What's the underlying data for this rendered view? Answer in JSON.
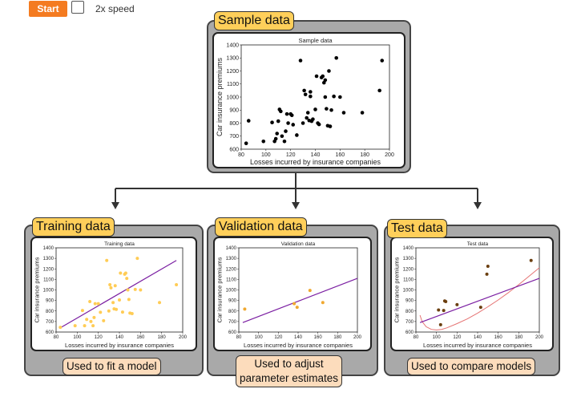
{
  "controls": {
    "start_label": "Start",
    "speed_label": "2x speed",
    "speed_checked": false,
    "accent_color": "#f47b20"
  },
  "panels": {
    "sample": {
      "label": "Sample data"
    },
    "training": {
      "label": "Training data",
      "note": "Used to fit a model"
    },
    "validation": {
      "label": "Validation data",
      "note_line1": "Used to adjust",
      "note_line2": "parameter estimates"
    },
    "test": {
      "label": "Test data",
      "note": "Used to compare models"
    }
  },
  "colors": {
    "panel_bg": "#a9a9a9",
    "tag_bg": "#ffcf5a",
    "note_bg": "#fcdcbc",
    "sample_point": "#000000",
    "train_point": "#ffcc55",
    "valid_point": "#f0a830",
    "test_point": "#6b3f10",
    "fit_line": "#7b1fa2",
    "curve": "#e57373"
  },
  "chart_data": [
    {
      "type": "scatter",
      "title": "Sample data",
      "xlabel": "Losses incurred by insurance companies",
      "ylabel": "Car insurance premiums",
      "xlim": [
        80,
        200
      ],
      "ylim": [
        600,
        1400
      ],
      "xticks": [
        80,
        100,
        120,
        140,
        160,
        180,
        200
      ],
      "yticks": [
        600,
        700,
        800,
        900,
        1000,
        1100,
        1200,
        1300,
        1400
      ],
      "grid": false,
      "points": [
        [
          84,
          645
        ],
        [
          86,
          818
        ],
        [
          98,
          660
        ],
        [
          105,
          805
        ],
        [
          107,
          660
        ],
        [
          108,
          680
        ],
        [
          109,
          720
        ],
        [
          110,
          815
        ],
        [
          111,
          905
        ],
        [
          112,
          890
        ],
        [
          113,
          700
        ],
        [
          115,
          660
        ],
        [
          116,
          738
        ],
        [
          117,
          870
        ],
        [
          118,
          800
        ],
        [
          120,
          870
        ],
        [
          121,
          860
        ],
        [
          122,
          788
        ],
        [
          125,
          708
        ],
        [
          128,
          1280
        ],
        [
          130,
          800
        ],
        [
          131,
          1050
        ],
        [
          132,
          1020
        ],
        [
          133,
          840
        ],
        [
          134,
          880
        ],
        [
          135,
          820
        ],
        [
          136,
          1040
        ],
        [
          136,
          1005
        ],
        [
          137,
          815
        ],
        [
          138,
          830
        ],
        [
          140,
          905
        ],
        [
          141,
          1160
        ],
        [
          142,
          800
        ],
        [
          143,
          790
        ],
        [
          145,
          1150
        ],
        [
          146,
          1160
        ],
        [
          147,
          1110
        ],
        [
          148,
          1130
        ],
        [
          148,
          1000
        ],
        [
          149,
          910
        ],
        [
          150,
          780
        ],
        [
          151,
          1200
        ],
        [
          152,
          775
        ],
        [
          153,
          900
        ],
        [
          155,
          1005
        ],
        [
          157,
          1300
        ],
        [
          160,
          1000
        ],
        [
          163,
          880
        ],
        [
          178,
          880
        ],
        [
          192,
          1050
        ],
        [
          194,
          1280
        ]
      ]
    },
    {
      "type": "scatter",
      "title": "Training data",
      "xlabel": "Losses incurred by insurance companies",
      "ylabel": "Car insurance premiums",
      "xlim": [
        80,
        200
      ],
      "ylim": [
        600,
        1400
      ],
      "xticks": [
        80,
        100,
        120,
        140,
        160,
        180,
        200
      ],
      "yticks": [
        600,
        700,
        800,
        900,
        1000,
        1100,
        1200,
        1300,
        1400
      ],
      "points": [
        [
          84,
          645
        ],
        [
          98,
          660
        ],
        [
          105,
          805
        ],
        [
          107,
          660
        ],
        [
          109,
          720
        ],
        [
          112,
          890
        ],
        [
          113,
          700
        ],
        [
          115,
          660
        ],
        [
          116,
          738
        ],
        [
          117,
          870
        ],
        [
          120,
          870
        ],
        [
          122,
          788
        ],
        [
          125,
          708
        ],
        [
          128,
          1280
        ],
        [
          130,
          800
        ],
        [
          131,
          1050
        ],
        [
          132,
          1020
        ],
        [
          134,
          880
        ],
        [
          135,
          820
        ],
        [
          136,
          1040
        ],
        [
          137,
          815
        ],
        [
          140,
          905
        ],
        [
          141,
          1160
        ],
        [
          143,
          790
        ],
        [
          145,
          1150
        ],
        [
          146,
          1160
        ],
        [
          147,
          1110
        ],
        [
          148,
          1000
        ],
        [
          149,
          910
        ],
        [
          150,
          780
        ],
        [
          152,
          775
        ],
        [
          155,
          1005
        ],
        [
          157,
          1300
        ],
        [
          160,
          1000
        ],
        [
          178,
          880
        ],
        [
          194,
          1050
        ]
      ],
      "fit_line": [
        [
          84,
          640
        ],
        [
          194,
          1280
        ]
      ]
    },
    {
      "type": "scatter",
      "title": "Validation data",
      "xlabel": "Losses incurred by insurance companies",
      "ylabel": "Car insurance premiums",
      "xlim": [
        80,
        200
      ],
      "ylim": [
        600,
        1400
      ],
      "xticks": [
        80,
        100,
        120,
        140,
        160,
        180,
        200
      ],
      "yticks": [
        600,
        700,
        800,
        900,
        1000,
        1100,
        1200,
        1300,
        1400
      ],
      "points": [
        [
          86,
          818
        ],
        [
          136,
          870
        ],
        [
          139,
          835
        ],
        [
          152,
          995
        ],
        [
          165,
          880
        ]
      ],
      "fit_line": [
        [
          84,
          690
        ],
        [
          200,
          1110
        ]
      ]
    },
    {
      "type": "scatter",
      "title": "Test data",
      "xlabel": "Losses incurred by insurance companies",
      "ylabel": "Car insurance premiums",
      "xlim": [
        80,
        200
      ],
      "ylim": [
        600,
        1400
      ],
      "xticks": [
        80,
        100,
        120,
        140,
        160,
        180,
        200
      ],
      "yticks": [
        600,
        700,
        800,
        900,
        1000,
        1100,
        1200,
        1300,
        1400
      ],
      "points": [
        [
          102,
          810
        ],
        [
          104,
          670
        ],
        [
          107,
          805
        ],
        [
          108,
          895
        ],
        [
          109,
          890
        ],
        [
          120,
          860
        ],
        [
          143,
          835
        ],
        [
          149,
          1150
        ],
        [
          150,
          1225
        ],
        [
          192,
          1280
        ]
      ],
      "fit_line": [
        [
          84,
          690
        ],
        [
          200,
          1110
        ]
      ],
      "curve": [
        [
          84,
          760
        ],
        [
          86,
          700
        ],
        [
          90,
          650
        ],
        [
          95,
          625
        ],
        [
          100,
          620
        ],
        [
          105,
          625
        ],
        [
          110,
          640
        ],
        [
          120,
          680
        ],
        [
          130,
          725
        ],
        [
          140,
          780
        ],
        [
          150,
          840
        ],
        [
          160,
          905
        ],
        [
          170,
          975
        ],
        [
          180,
          1050
        ],
        [
          190,
          1130
        ],
        [
          200,
          1210
        ]
      ]
    }
  ]
}
